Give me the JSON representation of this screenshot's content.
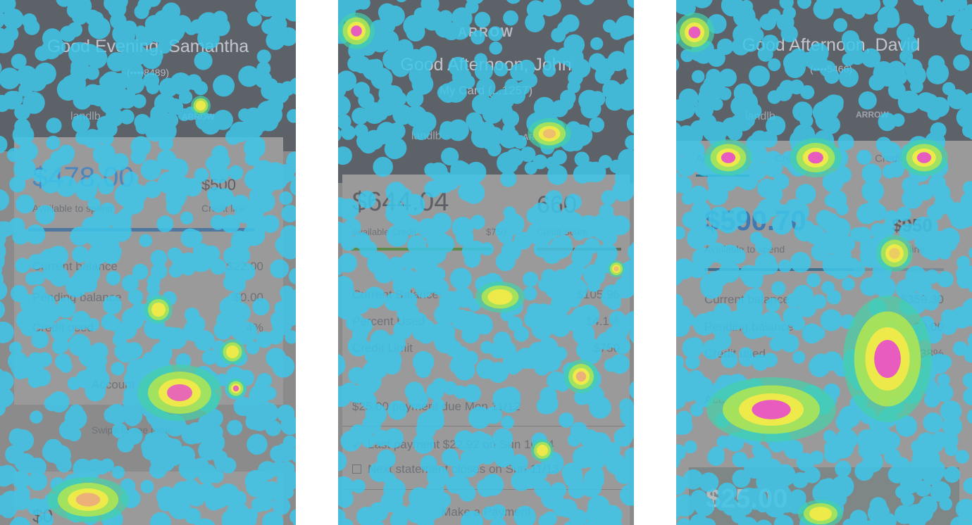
{
  "panel1": {
    "greeting": "Good Evening, Samantha",
    "card_number": "(••••8489)",
    "logo_left": "landlb",
    "logo_right": "ARROW",
    "available_amount": "$478.00",
    "available_label": "Available to spend",
    "credit_line_amount": "$500",
    "credit_line_label": "Credit line",
    "rows": [
      {
        "label": "Current balance",
        "value": "$22.00"
      },
      {
        "label": "Pending balance",
        "value": "$0.00"
      },
      {
        "label": "Credit used",
        "value": "4%"
      }
    ],
    "account_link": "Account details",
    "swipe_hint": "Swipe to see more",
    "bottom_amount": "$0"
  },
  "panel2": {
    "menu_icon": "hamburger-menu-icon",
    "brand": "ARROW",
    "greeting": "Good Afternoon, John",
    "card_label": "My Card (...1257)",
    "logo_left": "landlb",
    "logo_right": "ARROW",
    "available_amount": "$644.04",
    "available_label": "Available Credit",
    "available_sub": "$750",
    "score_value": "660",
    "score_label": "Credit Score",
    "rows": [
      {
        "label": "Current Balance",
        "value": "$105.96"
      },
      {
        "label": "Percent Used",
        "value": "14.1%"
      },
      {
        "label": "Credit Limit",
        "value": "$750"
      }
    ],
    "payment_due": "$25.00 payment due Mon 11/12",
    "last_payment": "Last payment $22.92 on Sun 10/14",
    "next_statement": "Next statement closes on Sun 11/13",
    "make_payment": "Make a Payment"
  },
  "panel3": {
    "greeting": "Good Afternoon, David",
    "card_number": "(••••5466)",
    "logo_left": "landlb",
    "logo_right": "ARROW",
    "tabs": [
      "Account",
      "Credit Used",
      "Credit Score"
    ],
    "available_amount": "$590.70",
    "available_label": "Available to spend",
    "credit_line_amount": "$950",
    "credit_line_label": "Credit line",
    "rows": [
      {
        "label": "Current balance",
        "value": "$359.30"
      },
      {
        "label": "Pending balance",
        "value": "$0.00"
      },
      {
        "label": "Credit used",
        "value": "38%"
      }
    ],
    "account_link": "Account details →",
    "bottom_amount": "$25.00"
  }
}
